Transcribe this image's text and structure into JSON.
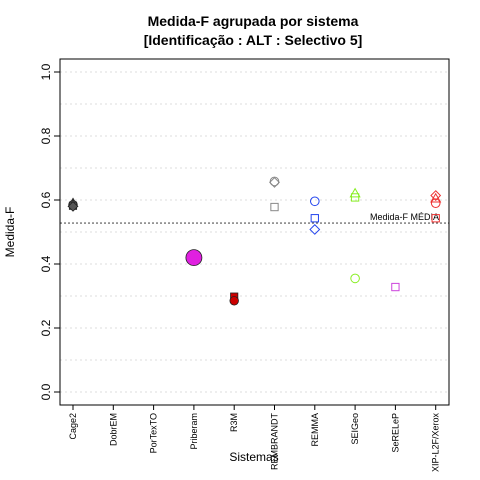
{
  "chart_data": {
    "type": "scatter",
    "title": "Medida-F agrupada por sistema",
    "subtitle": "[Identificação : ALT : Selectivo 5]",
    "xlabel": "Sistemas",
    "ylabel": "Medida-F",
    "ylim": [
      0,
      1
    ],
    "yticks": [
      0.0,
      0.2,
      0.4,
      0.6,
      0.8,
      1.0
    ],
    "ytick_labels": [
      "0.0",
      "0.2",
      "0.4",
      "0.6",
      "0.8",
      "1.0"
    ],
    "grid": "horizontal dotted",
    "categories": [
      "Cage2",
      "DobrEM",
      "PorTexTO",
      "Priberam",
      "R3M",
      "REMBRANDT",
      "REMMA",
      "SEIGeo",
      "SeRELeP",
      "XIP-L2F/Xerox"
    ],
    "series": [
      {
        "category": "Cage2",
        "color": "#555555",
        "filled": true,
        "points": [
          {
            "shape": "triangle",
            "y": 0.59
          },
          {
            "shape": "circle",
            "y": 0.585
          },
          {
            "shape": "square",
            "y": 0.582
          },
          {
            "shape": "diamond",
            "y": 0.58
          }
        ]
      },
      {
        "category": "Priberam",
        "color": "#e020e0",
        "filled": true,
        "points": [
          {
            "shape": "circle",
            "y": 0.42,
            "large": true
          }
        ]
      },
      {
        "category": "R3M",
        "color": "#cc0000",
        "filled": true,
        "points": [
          {
            "shape": "square",
            "y": 0.298
          },
          {
            "shape": "circle",
            "y": 0.285
          }
        ]
      },
      {
        "category": "REMBRANDT",
        "color": "#888888",
        "filled": false,
        "points": [
          {
            "shape": "circle",
            "y": 0.658
          },
          {
            "shape": "diamond",
            "y": 0.655
          },
          {
            "shape": "square",
            "y": 0.578
          }
        ]
      },
      {
        "category": "REMMA",
        "color": "#2244ee",
        "filled": false,
        "points": [
          {
            "shape": "circle",
            "y": 0.596
          },
          {
            "shape": "square",
            "y": 0.543
          },
          {
            "shape": "diamond",
            "y": 0.508
          }
        ]
      },
      {
        "category": "SEIGeo",
        "color": "#88ee22",
        "filled": false,
        "points": [
          {
            "shape": "triangle",
            "y": 0.62
          },
          {
            "shape": "square",
            "y": 0.608
          },
          {
            "shape": "circle",
            "y": 0.355
          }
        ]
      },
      {
        "category": "SeRELeP",
        "color": "#cc44dd",
        "filled": false,
        "points": [
          {
            "shape": "square",
            "y": 0.328
          }
        ]
      },
      {
        "category": "XIP-L2F/Xerox",
        "color": "#ee3333",
        "filled": false,
        "points": [
          {
            "shape": "diamond",
            "y": 0.614
          },
          {
            "shape": "triangle",
            "y": 0.604
          },
          {
            "shape": "circle",
            "y": 0.59
          },
          {
            "shape": "square",
            "y": 0.543
          }
        ]
      }
    ],
    "reference_line": {
      "y": 0.528,
      "label": "Medida-F MÉDIA",
      "style": "dotted",
      "color": "#555555"
    }
  }
}
